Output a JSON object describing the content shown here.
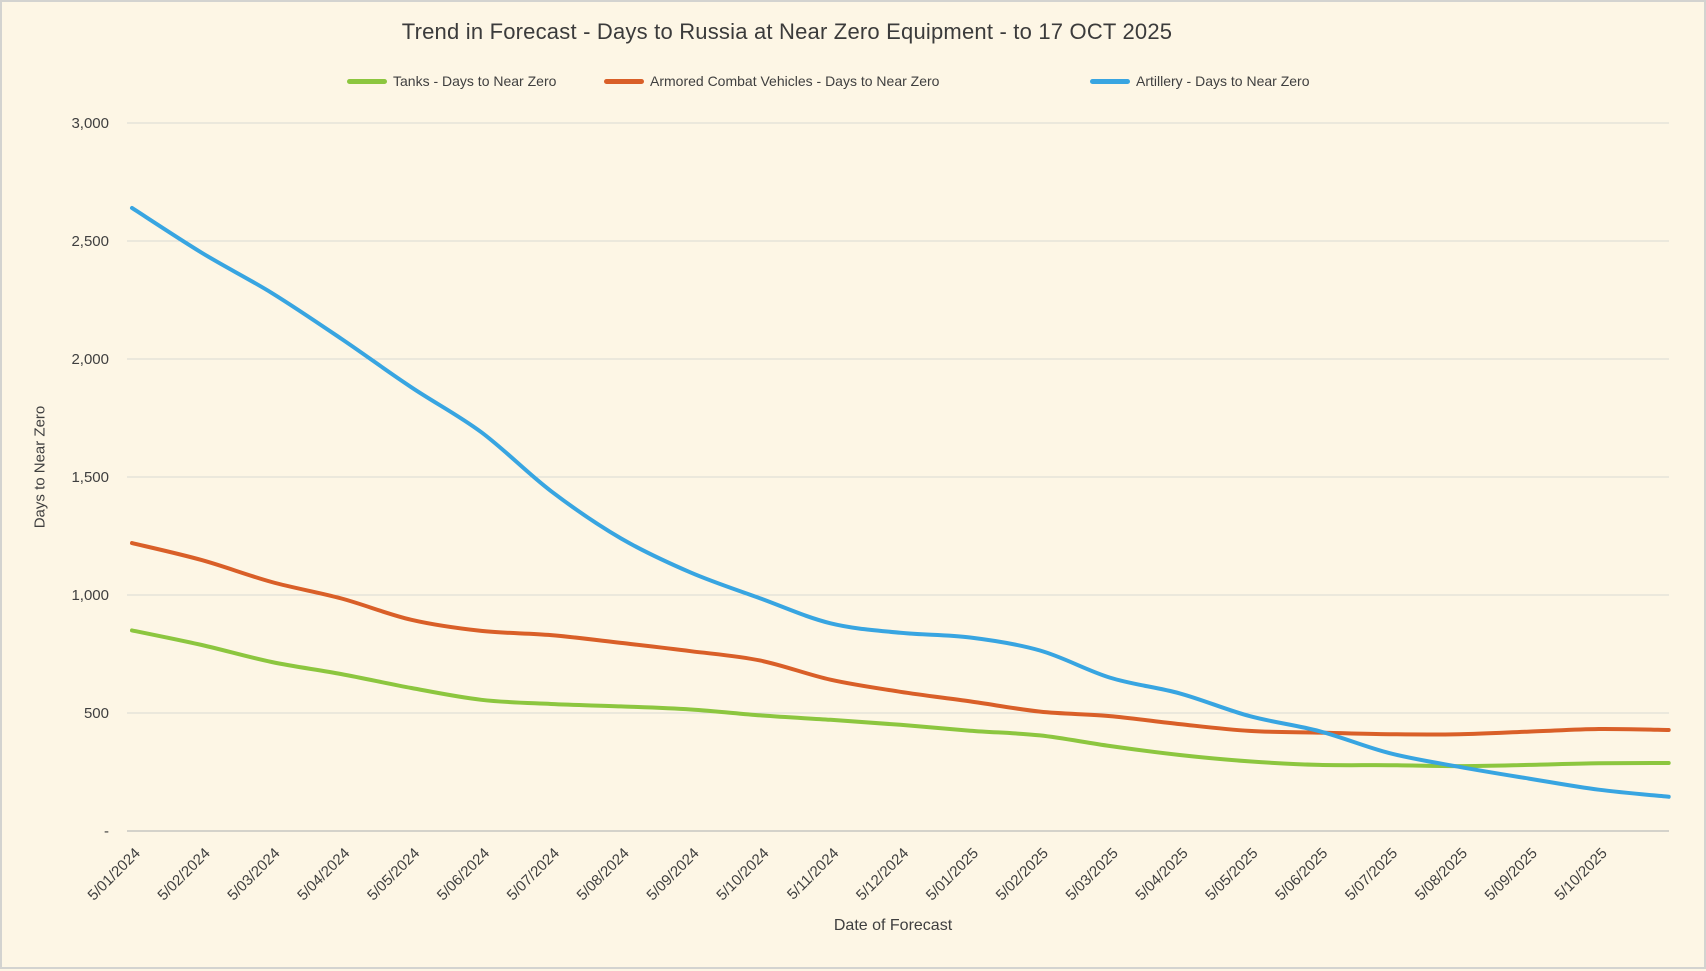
{
  "title": "Trend in Forecast - Days to Russia at Near Zero Equipment - to 17 OCT 2025",
  "legend": [
    {
      "label": "Tanks - Days to Near Zero",
      "color": "#8cc63f"
    },
    {
      "label": "Armored Combat Vehicles - Days to Near Zero",
      "color": "#d95f28"
    },
    {
      "label": "Artillery - Days to Near Zero",
      "color": "#38a5e1"
    }
  ],
  "chart_data": {
    "type": "line",
    "title": "Trend in Forecast - Days to Russia at Near Zero Equipment - to 17 OCT 2025",
    "xlabel": "Date of Forecast",
    "ylabel": "Days to Near Zero",
    "grid": "horizontal",
    "legend_position": "top",
    "ylim": [
      0,
      3000
    ],
    "y_ticks": [
      {
        "label": "3,000",
        "value": 3000
      },
      {
        "label": "2,500",
        "value": 2500
      },
      {
        "label": "2,000",
        "value": 2000
      },
      {
        "label": "1,500",
        "value": 1500
      },
      {
        "label": "1,000",
        "value": 1000
      },
      {
        "label": "500",
        "value": 500
      },
      {
        "label": "-",
        "value": 0
      }
    ],
    "x_labels": [
      "5/01/2024",
      "5/02/2024",
      "5/03/2024",
      "5/04/2024",
      "5/05/2024",
      "5/06/2024",
      "5/07/2024",
      "5/08/2024",
      "5/09/2024",
      "5/10/2024",
      "5/11/2024",
      "5/12/2024",
      "5/01/2025",
      "5/02/2025",
      "5/03/2025",
      "5/04/2025",
      "5/05/2025",
      "5/06/2025",
      "5/07/2025",
      "5/08/2025",
      "5/09/2025",
      "5/10/2025"
    ],
    "note_last_point": "series extend one interval past the 5/10/2025 tick, to 17 OCT 2025",
    "series": [
      {
        "name": "Tanks - Days to Near Zero",
        "color": "#8cc63f",
        "values": [
          850,
          788,
          716,
          665,
          606,
          556,
          538,
          528,
          515,
          490,
          471,
          450,
          425,
          405,
          360,
          322,
          295,
          280,
          279,
          275,
          280,
          287,
          288
        ]
      },
      {
        "name": "Armored Combat Vehicles - Days to Near Zero",
        "color": "#d95f28",
        "values": [
          1220,
          1148,
          1055,
          985,
          895,
          848,
          830,
          797,
          762,
          722,
          641,
          590,
          549,
          506,
          487,
          453,
          424,
          417,
          410,
          410,
          421,
          432,
          428
        ]
      },
      {
        "name": "Artillery - Days to Near Zero",
        "color": "#38a5e1",
        "values": [
          2640,
          2450,
          2280,
          2085,
          1880,
          1690,
          1440,
          1240,
          1095,
          985,
          880,
          840,
          820,
          765,
          650,
          583,
          487,
          423,
          330,
          272,
          222,
          175,
          145
        ]
      }
    ]
  }
}
